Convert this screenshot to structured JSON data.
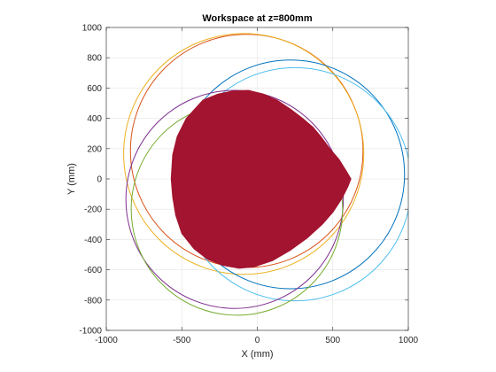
{
  "chart_data": {
    "type": "line",
    "title": "Workspace at z=800mm",
    "xlabel": "X (mm)",
    "ylabel": "Y (mm)",
    "xlim": [
      -1000,
      1000
    ],
    "ylim": [
      -1000,
      1000
    ],
    "xticks": [
      -1000,
      -500,
      0,
      500,
      1000
    ],
    "yticks": [
      -1000,
      -800,
      -600,
      -400,
      -200,
      0,
      200,
      400,
      600,
      800,
      1000
    ],
    "grid": true,
    "box": true,
    "aspect": "equal",
    "series": [
      {
        "kind": "circle",
        "center": [
          -70,
          185
        ],
        "radius": 770,
        "color": "#d95319"
      },
      {
        "kind": "circle",
        "center": [
          -90,
          165
        ],
        "radius": 795,
        "color": "#edb120"
      },
      {
        "kind": "circle",
        "center": [
          220,
          30
        ],
        "radius": 755,
        "color": "#0072bd"
      },
      {
        "kind": "circle",
        "center": [
          250,
          -35
        ],
        "radius": 770,
        "color": "#4dbeee"
      },
      {
        "kind": "circle",
        "center": [
          -150,
          -135
        ],
        "radius": 720,
        "color": "#7e2f8e"
      },
      {
        "kind": "circle",
        "center": [
          -135,
          -200
        ],
        "radius": 700,
        "color": "#77ac30"
      },
      {
        "kind": "filled-region",
        "color": "#a2142f",
        "x": [
          -560,
          -530,
          -470,
          -360,
          -260,
          -160,
          -60,
          40,
          130,
          220,
          300,
          370,
          420,
          480,
          540,
          590,
          620,
          600,
          560,
          500,
          430,
          330,
          220,
          100,
          -20,
          -120,
          -230,
          -330,
          -420,
          -500,
          -540,
          -560,
          -570,
          -560
        ],
        "y": [
          160,
          280,
          400,
          520,
          560,
          580,
          585,
          560,
          520,
          460,
          400,
          340,
          280,
          200,
          130,
          50,
          0,
          -50,
          -130,
          -220,
          -300,
          -390,
          -470,
          -540,
          -580,
          -590,
          -570,
          -530,
          -460,
          -360,
          -240,
          -120,
          0,
          160
        ]
      }
    ]
  }
}
